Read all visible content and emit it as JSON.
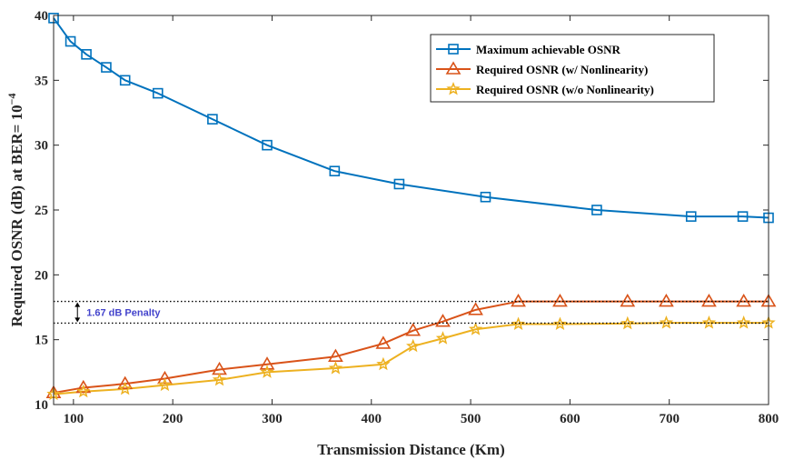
{
  "chart_data": {
    "type": "line",
    "title": "",
    "xlabel": "Transmission Distance (Km)",
    "ylabel_prefix": "Required OSNR (dB) at BER= 10",
    "ylabel_exponent": "−4",
    "xlim": [
      80,
      800
    ],
    "ylim": [
      10,
      40
    ],
    "xticks": [
      100,
      200,
      300,
      400,
      500,
      600,
      700,
      800
    ],
    "yticks": [
      10,
      15,
      20,
      25,
      30,
      35,
      40
    ],
    "grid": false,
    "legend_position": "top-right",
    "series": [
      {
        "name": "Maximum achievable OSNR",
        "color": "#0072BD",
        "marker": "square",
        "x": [
          80,
          97,
          113,
          133,
          152,
          185,
          240,
          295,
          363,
          428,
          515,
          627,
          722,
          774,
          800
        ],
        "y": [
          39.8,
          38,
          37,
          36,
          35,
          34,
          32,
          30,
          28,
          27,
          26,
          25,
          24.5,
          24.5,
          24.4
        ]
      },
      {
        "name": "Required OSNR (w/ Nonlinearity)",
        "color": "#D95319",
        "marker": "triangle",
        "x": [
          80,
          110,
          152,
          192,
          247,
          295,
          364,
          412,
          442,
          472,
          505,
          548,
          590,
          658,
          697,
          740,
          775,
          800
        ],
        "y": [
          10.9,
          11.3,
          11.6,
          12.0,
          12.7,
          13.1,
          13.7,
          14.7,
          15.7,
          16.4,
          17.3,
          17.95,
          17.95,
          17.95,
          17.95,
          17.95,
          17.95,
          17.95
        ]
      },
      {
        "name": "Required OSNR (w/o Nonlinearity)",
        "color": "#EDB120",
        "marker": "star",
        "x": [
          80,
          110,
          152,
          192,
          247,
          295,
          364,
          412,
          442,
          472,
          505,
          548,
          590,
          658,
          697,
          740,
          775,
          800
        ],
        "y": [
          10.8,
          11.0,
          11.2,
          11.5,
          11.9,
          12.5,
          12.8,
          13.1,
          14.5,
          15.1,
          15.8,
          16.2,
          16.2,
          16.25,
          16.3,
          16.3,
          16.3,
          16.3
        ]
      }
    ],
    "annotation": {
      "text": "1.67 dB Penalty",
      "color": "#4444CC",
      "upper_y": 17.95,
      "lower_y": 16.28,
      "arrow_x": 104
    }
  }
}
